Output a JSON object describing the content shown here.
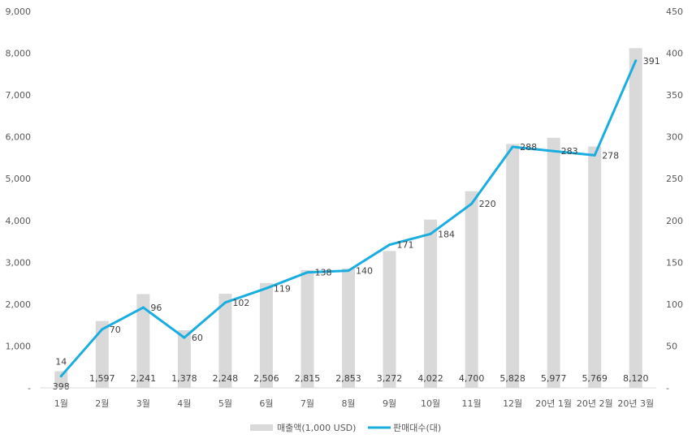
{
  "chart_data": {
    "type": "bar+line",
    "categories": [
      "1월",
      "2월",
      "3월",
      "4월",
      "5월",
      "6월",
      "7월",
      "8월",
      "9월",
      "10월",
      "11월",
      "12월",
      "20년 1월",
      "20년 2월",
      "20년 3월"
    ],
    "series": [
      {
        "name": "매출액(1,000 USD)",
        "type": "bar",
        "axis": "left",
        "color": "#d9d9d9",
        "values": [
          398,
          1597,
          2241,
          1378,
          2248,
          2506,
          2815,
          2853,
          3272,
          4022,
          4700,
          5828,
          5977,
          5769,
          8120
        ],
        "labels": [
          "398",
          "1,597",
          "2,241",
          "1,378",
          "2,248",
          "2,506",
          "2,815",
          "2,853",
          "3,272",
          "4,022",
          "4,700",
          "5,828",
          "5,977",
          "5,769",
          "8,120"
        ]
      },
      {
        "name": "판매대수(대)",
        "type": "line",
        "axis": "right",
        "color": "#1aaee0",
        "values": [
          14,
          70,
          96,
          60,
          102,
          119,
          138,
          140,
          171,
          184,
          220,
          288,
          283,
          278,
          391
        ],
        "labels": [
          "14",
          "70",
          "96",
          "60",
          "102",
          "119",
          "138",
          "140",
          "171",
          "184",
          "220",
          "288",
          "283",
          "278",
          "391"
        ]
      }
    ],
    "y_left": {
      "min": 0,
      "max": 9000,
      "ticks": [
        0,
        1000,
        2000,
        3000,
        4000,
        5000,
        6000,
        7000,
        8000,
        9000
      ],
      "tick_labels": [
        "-",
        "1,000",
        "2,000",
        "3,000",
        "4,000",
        "5,000",
        "6,000",
        "7,000",
        "8,000",
        "9,000"
      ]
    },
    "y_right": {
      "min": 0,
      "max": 450,
      "ticks": [
        0,
        50,
        100,
        150,
        200,
        250,
        300,
        350,
        400,
        450
      ],
      "tick_labels": [
        "-",
        "50",
        "100",
        "150",
        "200",
        "250",
        "300",
        "350",
        "400",
        "450"
      ]
    },
    "grid": false,
    "legend": {
      "placement": "bottom-center",
      "items": [
        {
          "label": "매출액(1,000 USD)",
          "color": "#d9d9d9",
          "marker": "bar"
        },
        {
          "label": "판매대수(대)",
          "color": "#1aaee0",
          "marker": "line"
        }
      ]
    }
  }
}
